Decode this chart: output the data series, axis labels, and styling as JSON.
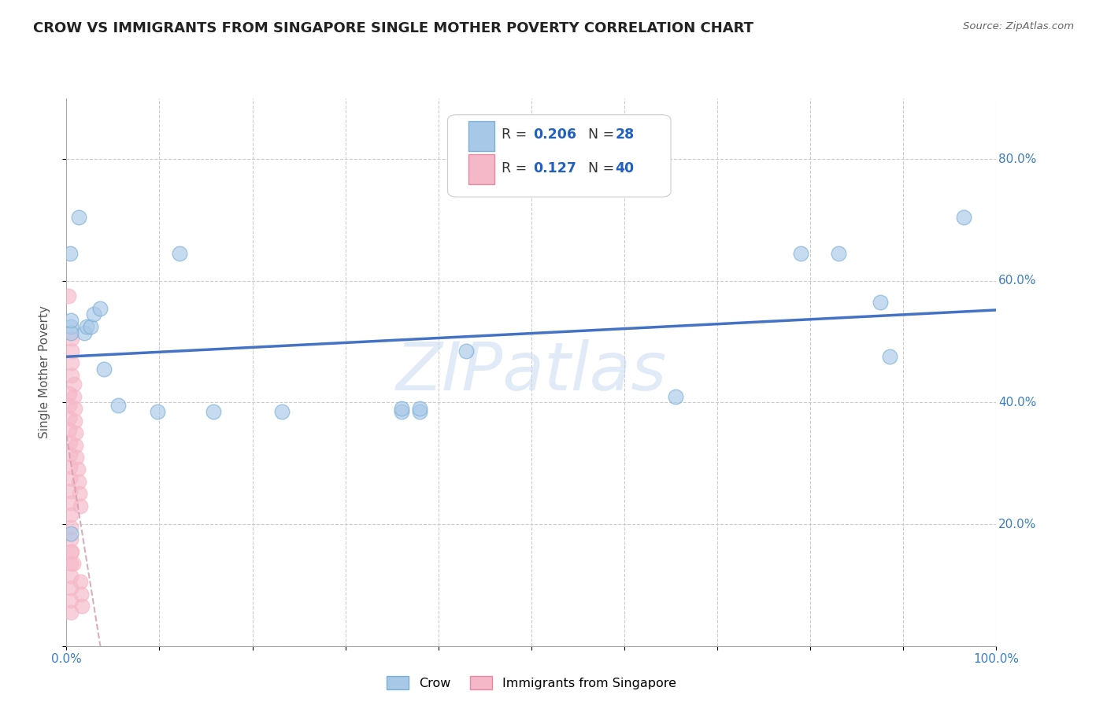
{
  "title": "CROW VS IMMIGRANTS FROM SINGAPORE SINGLE MOTHER POVERTY CORRELATION CHART",
  "source": "Source: ZipAtlas.com",
  "ylabel": "Single Mother Poverty",
  "xlim": [
    0,
    1.0
  ],
  "ylim": [
    0,
    0.9
  ],
  "xtick_positions": [
    0.0,
    0.1,
    0.2,
    0.3,
    0.4,
    0.5,
    0.6,
    0.7,
    0.8,
    0.9,
    1.0
  ],
  "xtick_labels": [
    "0.0%",
    "",
    "",
    "",
    "",
    "",
    "",
    "",
    "",
    "",
    "100.0%"
  ],
  "ytick_positions": [
    0.0,
    0.2,
    0.4,
    0.6,
    0.8
  ],
  "ytick_labels_right": [
    "",
    "20.0%",
    "40.0%",
    "60.0%",
    "80.0%"
  ],
  "crow_color": "#a8c8e8",
  "crow_edge_color": "#7bafd4",
  "singapore_color": "#f5b8c8",
  "singapore_edge_color": "#e88aa0",
  "trend_line_blue": "#4472c4",
  "trend_line_pink": "#d4a0b0",
  "watermark": "ZIPatlas",
  "grid_color": "#cccccc",
  "bg_color": "#ffffff",
  "title_fontsize": 13,
  "axis_label_fontsize": 11,
  "tick_fontsize": 11,
  "legend_R_color": "#2060c0",
  "legend_N_color": "#2060c0",
  "crow_points": [
    [
      0.004,
      0.645
    ],
    [
      0.013,
      0.705
    ],
    [
      0.019,
      0.515
    ],
    [
      0.022,
      0.525
    ],
    [
      0.026,
      0.525
    ],
    [
      0.029,
      0.545
    ],
    [
      0.036,
      0.555
    ],
    [
      0.04,
      0.455
    ],
    [
      0.056,
      0.395
    ],
    [
      0.098,
      0.385
    ],
    [
      0.122,
      0.645
    ],
    [
      0.158,
      0.385
    ],
    [
      0.232,
      0.385
    ],
    [
      0.36,
      0.385
    ],
    [
      0.38,
      0.385
    ],
    [
      0.005,
      0.185
    ],
    [
      0.005,
      0.525
    ],
    [
      0.005,
      0.515
    ],
    [
      0.005,
      0.535
    ],
    [
      0.36,
      0.39
    ],
    [
      0.38,
      0.39
    ],
    [
      0.43,
      0.485
    ],
    [
      0.655,
      0.41
    ],
    [
      0.79,
      0.645
    ],
    [
      0.83,
      0.645
    ],
    [
      0.875,
      0.565
    ],
    [
      0.885,
      0.475
    ],
    [
      0.965,
      0.705
    ]
  ],
  "singapore_points": [
    [
      0.002,
      0.575
    ],
    [
      0.003,
      0.415
    ],
    [
      0.003,
      0.395
    ],
    [
      0.003,
      0.375
    ],
    [
      0.003,
      0.355
    ],
    [
      0.004,
      0.335
    ],
    [
      0.004,
      0.315
    ],
    [
      0.004,
      0.295
    ],
    [
      0.004,
      0.275
    ],
    [
      0.004,
      0.255
    ],
    [
      0.005,
      0.235
    ],
    [
      0.005,
      0.215
    ],
    [
      0.005,
      0.195
    ],
    [
      0.005,
      0.175
    ],
    [
      0.005,
      0.155
    ],
    [
      0.005,
      0.135
    ],
    [
      0.005,
      0.115
    ],
    [
      0.005,
      0.095
    ],
    [
      0.005,
      0.075
    ],
    [
      0.005,
      0.055
    ],
    [
      0.006,
      0.505
    ],
    [
      0.006,
      0.485
    ],
    [
      0.006,
      0.465
    ],
    [
      0.006,
      0.445
    ],
    [
      0.006,
      0.155
    ],
    [
      0.007,
      0.135
    ],
    [
      0.008,
      0.43
    ],
    [
      0.008,
      0.41
    ],
    [
      0.009,
      0.39
    ],
    [
      0.009,
      0.37
    ],
    [
      0.01,
      0.35
    ],
    [
      0.01,
      0.33
    ],
    [
      0.011,
      0.31
    ],
    [
      0.012,
      0.29
    ],
    [
      0.013,
      0.27
    ],
    [
      0.014,
      0.25
    ],
    [
      0.015,
      0.23
    ],
    [
      0.015,
      0.105
    ],
    [
      0.016,
      0.085
    ],
    [
      0.017,
      0.065
    ]
  ]
}
